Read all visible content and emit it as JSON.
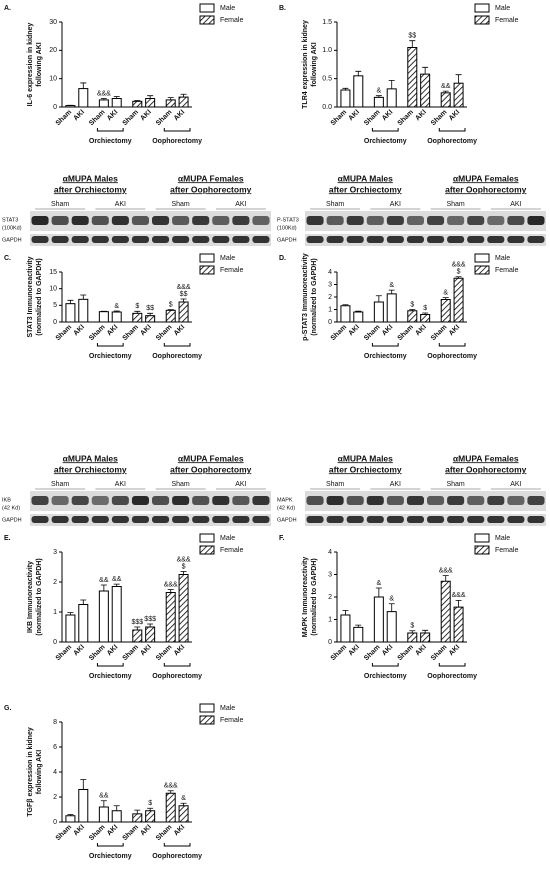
{
  "chart_data": [
    {
      "type": "bar",
      "panel": "A.",
      "ylabel": [
        "IL-6 expression in kidney",
        "following AKI"
      ],
      "categories": [
        "Sham",
        "AKI",
        "Sham",
        "AKI",
        "Sham",
        "AKI",
        "Sham",
        "AKI"
      ],
      "groups": [
        "Orchiectomy",
        "Oophorectomy"
      ],
      "ylim": [
        0,
        30
      ],
      "yticks": [
        0,
        10,
        20,
        30
      ],
      "series": [
        {
          "name": "Male",
          "color": "#ffffff",
          "hatch": false,
          "values": [
            0.5,
            6.5,
            2.5,
            3,
            null,
            null,
            null,
            null
          ],
          "errors": [
            0.1,
            2,
            0.5,
            0.7,
            null,
            null,
            null,
            null
          ]
        },
        {
          "name": "Female",
          "color": "#ffffff",
          "hatch": true,
          "values": [
            null,
            null,
            null,
            null,
            2,
            3,
            2.5,
            3.5
          ],
          "errors": [
            null,
            null,
            null,
            null,
            0.3,
            1,
            0.8,
            1
          ]
        }
      ],
      "annotations": [
        null,
        null,
        [
          "&&&"
        ],
        null,
        null,
        null,
        null,
        null
      ]
    },
    {
      "type": "bar",
      "panel": "B.",
      "ylabel": [
        "TLR4 expression in kidney",
        "following AKI"
      ],
      "categories": [
        "Sham",
        "AKI",
        "Sham",
        "AKI",
        "Sham",
        "AKI",
        "Sham",
        "AKI"
      ],
      "groups": [
        "Orchiectomy",
        "Oophorectomy"
      ],
      "ylim": [
        0,
        1.5
      ],
      "yticks": [
        {
          "value": 0,
          "label": "0.0"
        },
        0.5,
        {
          "value": 1,
          "label": "1.0"
        },
        1.5
      ],
      "series": [
        {
          "name": "Male",
          "color": "#ffffff",
          "hatch": false,
          "values": [
            0.3,
            0.55,
            0.17,
            0.32,
            null,
            null,
            null,
            null
          ],
          "errors": [
            0.03,
            0.08,
            0.03,
            0.15,
            null,
            null,
            null,
            null
          ]
        },
        {
          "name": "Female",
          "color": "#ffffff",
          "hatch": true,
          "values": [
            null,
            null,
            null,
            null,
            1.05,
            0.58,
            0.25,
            0.42
          ],
          "errors": [
            null,
            null,
            null,
            null,
            0.12,
            0.12,
            0.03,
            0.15
          ]
        }
      ],
      "annotations": [
        null,
        null,
        [
          "&"
        ],
        null,
        [
          "$$"
        ],
        null,
        [
          "&&"
        ],
        null
      ]
    },
    {
      "type": "bar",
      "panel": "C.",
      "ylabel": [
        "STAT3 Immunoreactivity",
        "(normalized to GAPDH)"
      ],
      "categories": [
        "Sham",
        "AKI",
        "Sham",
        "AKI",
        "Sham",
        "AKI",
        "Sham",
        "AKI"
      ],
      "groups": [
        "Orchiectomy",
        "Oophorectomy"
      ],
      "ylim": [
        0,
        15
      ],
      "yticks": [
        0,
        5,
        10,
        15
      ],
      "series": [
        {
          "name": "Male",
          "color": "#ffffff",
          "hatch": false,
          "values": [
            5.5,
            6.8,
            3.1,
            3,
            null,
            null,
            null,
            null
          ],
          "errors": [
            1,
            1.3,
            0.1,
            0.3,
            null,
            null,
            null,
            null
          ]
        },
        {
          "name": "Female",
          "color": "#ffffff",
          "hatch": true,
          "values": [
            null,
            null,
            null,
            null,
            2.6,
            1.9,
            3.5,
            6
          ],
          "errors": [
            null,
            null,
            null,
            null,
            0.6,
            0.7,
            0.2,
            0.9
          ]
        }
      ],
      "annotations": [
        null,
        null,
        null,
        [
          "&"
        ],
        [
          "$"
        ],
        [
          "$$"
        ],
        [
          "$"
        ],
        [
          "&&&",
          "$$"
        ]
      ]
    },
    {
      "type": "bar",
      "panel": "D.",
      "ylabel": [
        "p-STAT3 Immunoreactivity",
        "(normalized to GAPDH)"
      ],
      "categories": [
        "Sham",
        "AKI",
        "Sham",
        "AKI",
        "Sham",
        "AKI",
        "Sham",
        "AKI"
      ],
      "groups": [
        "Orchiectomy",
        "Oophorectomy"
      ],
      "ylim": [
        0,
        4
      ],
      "yticks": [
        0,
        1,
        2,
        3,
        4
      ],
      "series": [
        {
          "name": "Male",
          "color": "#ffffff",
          "hatch": false,
          "values": [
            1.3,
            0.8,
            1.6,
            2.25,
            null,
            null,
            null,
            null
          ],
          "errors": [
            0.08,
            0.07,
            0.5,
            0.3,
            null,
            null,
            null,
            null
          ]
        },
        {
          "name": "Female",
          "color": "#ffffff",
          "hatch": true,
          "values": [
            null,
            null,
            null,
            null,
            0.9,
            0.6,
            1.8,
            3.5
          ],
          "errors": [
            null,
            null,
            null,
            null,
            0.1,
            0.12,
            0.15,
            0.12
          ]
        }
      ],
      "annotations": [
        null,
        null,
        null,
        [
          "&"
        ],
        [
          "$"
        ],
        [
          "$"
        ],
        [
          "&"
        ],
        [
          "&&&",
          "$"
        ]
      ]
    },
    {
      "type": "bar",
      "panel": "E.",
      "ylabel": [
        "IKB Immunoreactivity",
        "(normalized to GAPDH)"
      ],
      "categories": [
        "Sham",
        "AKI",
        "Sham",
        "AKI",
        "Sham",
        "AKI",
        "Sham",
        "AKI"
      ],
      "groups": [
        "Orchiectomy",
        "Oophorectomy"
      ],
      "ylim": [
        0,
        3
      ],
      "yticks": [
        0,
        1,
        2,
        3
      ],
      "series": [
        {
          "name": "Male",
          "color": "#ffffff",
          "hatch": false,
          "values": [
            0.9,
            1.25,
            1.7,
            1.85,
            null,
            null,
            null,
            null
          ],
          "errors": [
            0.08,
            0.15,
            0.2,
            0.08,
            null,
            null,
            null,
            null
          ]
        },
        {
          "name": "Female",
          "color": "#ffffff",
          "hatch": true,
          "values": [
            null,
            null,
            null,
            null,
            0.4,
            0.5,
            1.65,
            2.25
          ],
          "errors": [
            null,
            null,
            null,
            null,
            0.1,
            0.1,
            0.1,
            0.1
          ]
        }
      ],
      "annotations": [
        null,
        null,
        [
          "&&"
        ],
        [
          "&&"
        ],
        [
          "$$$"
        ],
        [
          "$$$"
        ],
        [
          "&&&"
        ],
        [
          "&&&",
          "$"
        ]
      ]
    },
    {
      "type": "bar",
      "panel": "F.",
      "ylabel": [
        "MAPK Immunoreactivity",
        "(normalized to GAPDH)"
      ],
      "categories": [
        "Sham",
        "AKI",
        "Sham",
        "AKI",
        "Sham",
        "AKI",
        "Sham",
        "AKI"
      ],
      "groups": [
        "Orchiectomy",
        "Oophorectomy"
      ],
      "ylim": [
        0,
        4
      ],
      "yticks": [
        0,
        1,
        2,
        3,
        4
      ],
      "series": [
        {
          "name": "Male",
          "color": "#ffffff",
          "hatch": false,
          "values": [
            1.2,
            0.65,
            2,
            1.35,
            null,
            null,
            null,
            null
          ],
          "errors": [
            0.2,
            0.1,
            0.4,
            0.35,
            null,
            null,
            null,
            null
          ]
        },
        {
          "name": "Female",
          "color": "#ffffff",
          "hatch": true,
          "values": [
            null,
            null,
            null,
            null,
            0.4,
            0.4,
            2.7,
            1.55
          ],
          "errors": [
            null,
            null,
            null,
            null,
            0.1,
            0.12,
            0.25,
            0.3
          ]
        }
      ],
      "annotations": [
        null,
        null,
        [
          "&"
        ],
        [
          "&"
        ],
        [
          "$"
        ],
        null,
        [
          "&&&"
        ],
        [
          "&&&"
        ]
      ]
    },
    {
      "type": "bar",
      "panel": "G.",
      "ylabel": [
        "TGFβ expression in kidney",
        "following AKI"
      ],
      "categories": [
        "Sham",
        "AKI",
        "Sham",
        "AKI",
        "Sham",
        "AKI",
        "Sham",
        "AKI"
      ],
      "groups": [
        "Orchiectomy",
        "Oophorectomy"
      ],
      "ylim": [
        0,
        8
      ],
      "yticks": [
        0,
        2,
        4,
        6,
        8
      ],
      "series": [
        {
          "name": "Male",
          "color": "#ffffff",
          "hatch": false,
          "values": [
            0.5,
            2.6,
            1.2,
            0.9,
            null,
            null,
            null,
            null
          ],
          "errors": [
            0.1,
            0.8,
            0.5,
            0.4,
            null,
            null,
            null,
            null
          ]
        },
        {
          "name": "Female",
          "color": "#ffffff",
          "hatch": true,
          "values": [
            null,
            null,
            null,
            null,
            0.65,
            0.9,
            2.3,
            1.3
          ],
          "errors": [
            null,
            null,
            null,
            null,
            0.3,
            0.2,
            0.2,
            0.2
          ]
        }
      ],
      "annotations": [
        null,
        null,
        [
          "&&"
        ],
        null,
        null,
        [
          "$"
        ],
        [
          "&&&"
        ],
        [
          "&"
        ]
      ]
    }
  ],
  "blots": [
    {
      "headers": [
        [
          "αMUPA Males",
          "after Orchiectomy"
        ],
        [
          "αMUPA Females",
          "after Oophorectomy"
        ]
      ],
      "lanes": [
        "Sham",
        "AKI",
        "Sham",
        "AKI"
      ],
      "protein": [
        "STAT3",
        "(100Kd)"
      ],
      "control": "GAPDH"
    },
    {
      "headers": [
        [
          "αMUPA Males",
          "after Orchiectomy"
        ],
        [
          "αMUPA Females",
          "after Oophorectomy"
        ]
      ],
      "lanes": [
        "Sham",
        "AKI",
        "Sham",
        "AKI"
      ],
      "protein": [
        "P-STAT3",
        "(100Kd)"
      ],
      "control": "GAPDH"
    },
    {
      "headers": [
        [
          "αMUPA Males",
          "after Orchiectomy"
        ],
        [
          "αMUPA Females",
          "after Oophorectomy"
        ]
      ],
      "lanes": [
        "Sham",
        "AKI",
        "Sham",
        "AKI"
      ],
      "protein": [
        "IKB",
        "(42 Kd)"
      ],
      "control": "GAPDH"
    },
    {
      "headers": [
        [
          "αMUPA Males",
          "after Orchiectomy"
        ],
        [
          "αMUPA Females",
          "after Oophorectomy"
        ]
      ],
      "lanes": [
        "Sham",
        "AKI",
        "Sham",
        "AKI"
      ],
      "protein": [
        "MAPK",
        "(42 Kd)"
      ],
      "control": "GAPDH"
    }
  ]
}
